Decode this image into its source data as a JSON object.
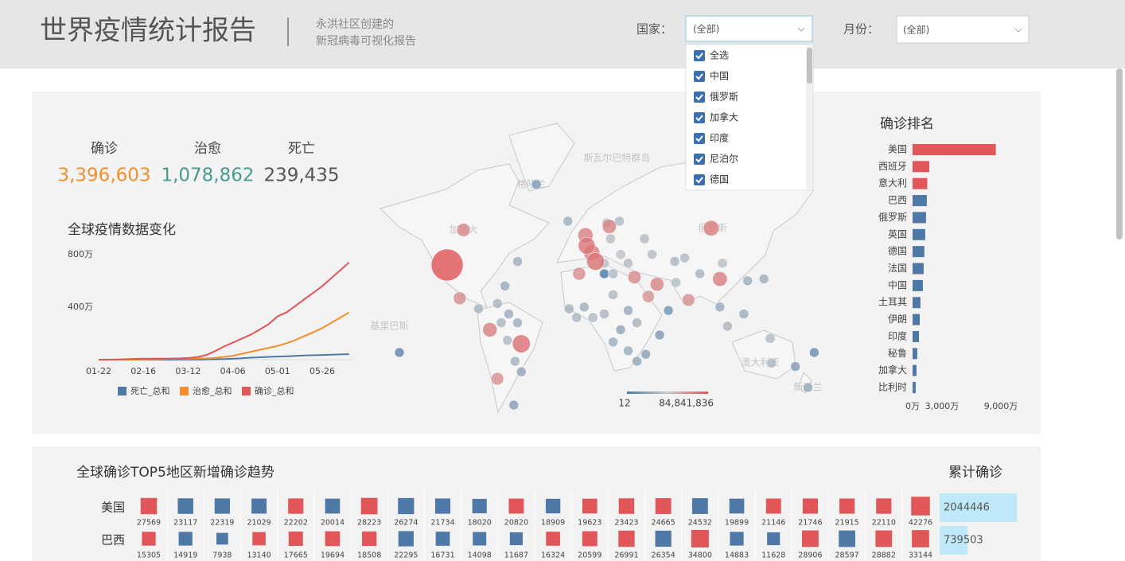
{
  "header": {
    "title": "世界疫情统计报告",
    "subtitle": [
      "永洪社区创建的",
      "新冠病毒可视化报告"
    ]
  },
  "filters": {
    "country": {
      "label": "国家：",
      "value": "(全部)",
      "options": [
        {
          "label": "全选",
          "checked": true
        },
        {
          "label": "中国",
          "checked": true
        },
        {
          "label": "俄罗斯",
          "checked": true
        },
        {
          "label": "加拿大",
          "checked": true
        },
        {
          "label": "印度",
          "checked": true
        },
        {
          "label": "尼泊尔",
          "checked": true
        },
        {
          "label": "德国",
          "checked": true
        }
      ]
    },
    "month": {
      "label": "月份：",
      "value": "(全部)"
    }
  },
  "kpis": [
    {
      "label": "确诊",
      "value": "3,396,603",
      "color": "#f28e2b"
    },
    {
      "label": "治愈",
      "value": "1,078,862",
      "color": "#4a9b8e"
    },
    {
      "label": "死亡",
      "value": "239,435",
      "color": "#555555"
    }
  ],
  "chart_data": [
    {
      "type": "line",
      "title": "全球疫情数据变化",
      "categories": [
        "01-22",
        null,
        null,
        null,
        null,
        "02-16",
        null,
        null,
        null,
        null,
        "03-12",
        null,
        null,
        null,
        null,
        "04-06",
        null,
        null,
        null,
        null,
        "05-01",
        null,
        null,
        null,
        null,
        "05-26",
        null,
        null,
        null
      ],
      "series": [
        {
          "name": "死亡_总和",
          "color": "#4e79a7",
          "values": [
            17,
            130,
            360,
            800,
            1400,
            1800,
            2200,
            2600,
            3000,
            3400,
            4600,
            8000,
            14000,
            30000,
            50000,
            70000,
            110000,
            150000,
            180000,
            210000,
            235000,
            260000,
            290000,
            320000,
            340000,
            360000,
            380000,
            400000,
            420000
          ]
        },
        {
          "name": "治愈_总和",
          "color": "#f28e2b",
          "values": [
            28,
            100,
            500,
            1500,
            5000,
            13000,
            30000,
            45000,
            60000,
            70000,
            80000,
            90000,
            100000,
            140000,
            210000,
            300000,
            450000,
            600000,
            750000,
            900000,
            1050000,
            1250000,
            1500000,
            1800000,
            2100000,
            2400000,
            2800000,
            3200000,
            3600000
          ]
        },
        {
          "name": "确诊_总和",
          "color": "#e15759",
          "values": [
            555,
            6000,
            17000,
            34000,
            60000,
            71000,
            78000,
            83000,
            87000,
            100000,
            125000,
            200000,
            340000,
            650000,
            1000000,
            1300000,
            1600000,
            1900000,
            2300000,
            2700000,
            3300000,
            3600000,
            4100000,
            4600000,
            5100000,
            5600000,
            6200000,
            6800000,
            7400000
          ]
        }
      ],
      "ylim": [
        0,
        8000000
      ],
      "yticks": [
        {
          "value": 4000000,
          "label": "400万"
        },
        {
          "value": 8000000,
          "label": "800万"
        }
      ],
      "legend": "bottom"
    },
    {
      "type": "map",
      "place_labels": [
        {
          "name": "斯瓦尔巴特群岛",
          "lon": 23,
          "lat": 86
        },
        {
          "name": "格陵兰",
          "lon": -45,
          "lat": 71
        },
        {
          "name": "加拿大",
          "lon": -99,
          "lat": 45
        },
        {
          "name": "俄罗斯",
          "lon": 99,
          "lat": 46
        },
        {
          "name": "基里巴斯",
          "lon": -158,
          "lat": -10
        },
        {
          "name": "澳大利亚",
          "lon": 137,
          "lat": -31
        },
        {
          "name": "新西兰",
          "lon": 175,
          "lat": -45
        }
      ],
      "lon": [
        -112,
        -99,
        -102,
        -78,
        -53,
        -72,
        -1,
        17,
        6,
        3,
        -7,
        37,
        55,
        48,
        80,
        98,
        105,
        -2,
        -41,
        -56,
        -66,
        -87,
        -72,
        -63,
        -69,
        -56,
        -64,
        -58,
        -53,
        -59,
        -150,
        -16,
        15,
        25,
        18,
        26,
        32,
        13,
        20,
        -15,
        -9,
        4,
        13,
        -3,
        20,
        32,
        39,
        26,
        20,
        32,
        39,
        46,
        57,
        64,
        70,
        77,
        89,
        107,
        127,
        140,
        105,
        111,
        124,
        145,
        146,
        165,
        180,
        175,
        69,
        45,
        51,
        13
      ],
      "lat": [
        25,
        45,
        6,
        -12,
        -20,
        -40,
        36,
        47,
        27,
        32,
        20,
        18,
        14,
        7,
        5,
        46,
        17,
        42,
        71,
        27,
        13,
        0,
        3,
        -3,
        -8,
        -8,
        -18,
        -30,
        -36,
        -55,
        -25,
        50,
        49,
        50,
        40,
        31,
        26,
        26,
        20,
        0,
        -5,
        -5,
        -3,
        1,
        8,
        -1,
        -8,
        -12,
        -19,
        -24,
        -30,
        -26,
        -15,
        -1,
        15,
        29,
        20,
        26,
        16,
        17,
        1,
        -10,
        -3,
        -17,
        -31,
        -33,
        -25,
        -45,
        27,
        40,
        31,
        20
      ],
      "values": [
        84841836,
        2500000,
        1800000,
        4000000,
        12000000,
        1500000,
        9000000,
        3500000,
        11000000,
        7000000,
        2000000,
        2200000,
        3000000,
        1200000,
        1600000,
        6000000,
        4500000,
        5000000,
        300,
        2500,
        1500,
        3500,
        5000,
        1500,
        4000,
        2000,
        6500,
        3000,
        1000,
        500,
        40,
        2000,
        9000,
        7000,
        12000,
        15000,
        8000,
        10000,
        6000,
        3000,
        5000,
        7000,
        4000,
        2500,
        6000,
        1500,
        3500,
        900,
        2000,
        1800,
        1200,
        700,
        300,
        150,
        9000,
        6500,
        3500,
        12000,
        1800,
        2500,
        1500,
        5000,
        2000,
        7000,
        6000,
        400,
        100,
        1500,
        4000,
        8000,
        10000,
        12
      ],
      "colorlim": [
        12,
        {
          "value": 84841836,
          "label": "84,841,836"
        }
      ],
      "color_scale": "log",
      "low_color": "#4e79a7",
      "mid_color": "#c9c9c9",
      "high_color": "#e15759"
    },
    {
      "type": "bar",
      "orientation": "horizontal",
      "title": "确诊排名",
      "categories": [
        "美国",
        "西班牙",
        "意大利",
        "巴西",
        "俄罗斯",
        "英国",
        "德国",
        "法国",
        "中国",
        "土耳其",
        "伊朗",
        "印度",
        "秘鲁",
        "加拿大",
        "比利时"
      ],
      "values": [
        84841836,
        17000000,
        15000000,
        14500000,
        13700000,
        12900000,
        12000000,
        11300000,
        10500000,
        8000000,
        7300000,
        6500000,
        4800000,
        4000000,
        3200000
      ],
      "colors": [
        "#e15759",
        "#e15759",
        "#e15759",
        "#4e79a7",
        "#4e79a7",
        "#4e79a7",
        "#4e79a7",
        "#4e79a7",
        "#4e79a7",
        "#4e79a7",
        "#4e79a7",
        "#4e79a7",
        "#4e79a7",
        "#4e79a7",
        "#4e79a7"
      ],
      "xlim": [
        0,
        90000000
      ],
      "xticks": [
        {
          "value": 0,
          "label": "0万"
        },
        {
          "value": 30000000,
          "label": "3,000万"
        },
        {
          "value": 90000000,
          "label": "9,000万"
        }
      ]
    },
    {
      "type": "matrix",
      "title": "全球确诊TOP5地区新增确诊趋势",
      "rows": [
        "美国",
        "巴西"
      ],
      "values": [
        [
          27569,
          23117,
          22319,
          21029,
          22202,
          20014,
          28223,
          26274,
          21734,
          18020,
          20820,
          18909,
          19623,
          23423,
          24665,
          24532,
          19899,
          21146,
          21746,
          21915,
          22110,
          42276
        ],
        [
          15305,
          14919,
          7938,
          13140,
          17665,
          19694,
          18508,
          22295,
          16731,
          14098,
          11687,
          16324,
          20599,
          26991,
          26354,
          34800,
          14883,
          11628,
          28906,
          28597,
          28882,
          33144
        ]
      ],
      "colors": [
        [
          "#e15759",
          "#4e79a7",
          "#4e79a7",
          "#4e79a7",
          "#e15759",
          "#4e79a7",
          "#e15759",
          "#4e79a7",
          "#4e79a7",
          "#4e79a7",
          "#e15759",
          "#4e79a7",
          "#e15759",
          "#e15759",
          "#e15759",
          "#4e79a7",
          "#4e79a7",
          "#e15759",
          "#e15759",
          "#e15759",
          "#e15759",
          "#e15759"
        ],
        [
          "#e15759",
          "#4e79a7",
          "#4e79a7",
          "#e15759",
          "#e15759",
          "#e15759",
          "#e15759",
          "#4e79a7",
          "#4e79a7",
          "#4e79a7",
          "#4e79a7",
          "#e15759",
          "#e15759",
          "#e15759",
          "#4e79a7",
          "#e15759",
          "#4e79a7",
          "#4e79a7",
          "#e15759",
          "#4e79a7",
          "#e15759",
          "#e15759"
        ]
      ]
    },
    {
      "type": "bar",
      "orientation": "horizontal",
      "title": "累计确诊",
      "values": [
        2044446,
        739503
      ],
      "color": "#bde9f9",
      "xlim": [
        0,
        2100000
      ]
    }
  ]
}
